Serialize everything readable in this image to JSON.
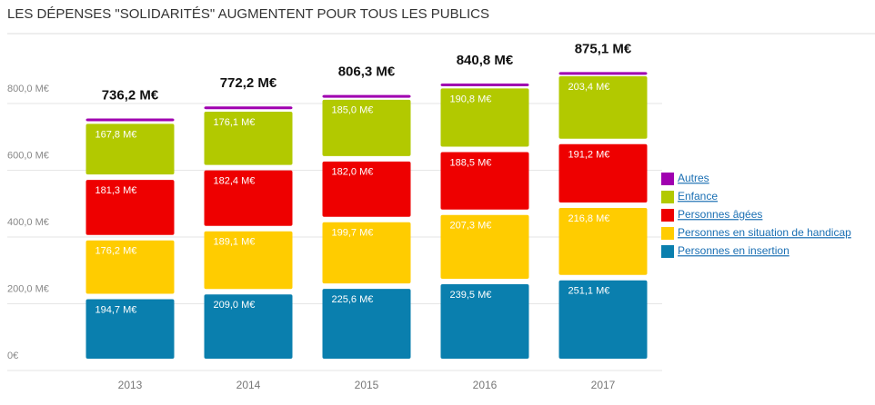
{
  "chart_data": {
    "type": "stacked-bar",
    "title": "LES DÉPENSES \"SOLIDARITÉS\" AUGMENTENT POUR TOUS LES PUBLICS",
    "categories": [
      "2013",
      "2014",
      "2015",
      "2016",
      "2017"
    ],
    "series": [
      {
        "name": "Personnes en insertion",
        "color": "#0a7fae",
        "values": [
          194.7,
          209.0,
          225.6,
          239.5,
          251.1
        ],
        "value_labels": [
          "194,7 M€",
          "209,0 M€",
          "225,6 M€",
          "239,5 M€",
          "251,1 M€"
        ]
      },
      {
        "name": "Personnes en situation de handicap",
        "color": "#ffcc00",
        "values": [
          176.2,
          189.1,
          199.7,
          207.3,
          216.8
        ],
        "value_labels": [
          "176,2 M€",
          "189,1 M€",
          "199,7 M€",
          "207,3 M€",
          "216,8 M€"
        ]
      },
      {
        "name": "Personnes âgées",
        "color": "#ee0000",
        "values": [
          181.3,
          182.4,
          182.0,
          188.5,
          191.2
        ],
        "value_labels": [
          "181,3 M€",
          "182,4 M€",
          "182,0 M€",
          "188,5 M€",
          "191,2 M€"
        ]
      },
      {
        "name": "Enfance",
        "color": "#b2c900",
        "values": [
          167.8,
          176.1,
          185.0,
          190.8,
          203.4
        ],
        "value_labels": [
          "167,8 M€",
          "176,1 M€",
          "185,0 M€",
          "190,8 M€",
          "203,4 M€"
        ]
      },
      {
        "name": "Autres",
        "color": "#a000b0",
        "values": [
          16.2,
          15.6,
          14.0,
          14.7,
          12.6
        ]
      }
    ],
    "totals": {
      "values": [
        736.2,
        772.2,
        806.3,
        840.8,
        875.1
      ],
      "value_labels": [
        "736,2 M€",
        "772,2 M€",
        "806,3 M€",
        "840,8 M€",
        "875,1 M€"
      ]
    },
    "ylim": [
      0,
      1000
    ],
    "yticks": [
      {
        "value": 0,
        "label": "0€"
      },
      {
        "value": 200,
        "label": "200,0 M€"
      },
      {
        "value": 400,
        "label": "400,0 M€"
      },
      {
        "value": 600,
        "label": "600,0 M€"
      },
      {
        "value": 800,
        "label": "800,0 M€"
      }
    ],
    "grid": true
  }
}
